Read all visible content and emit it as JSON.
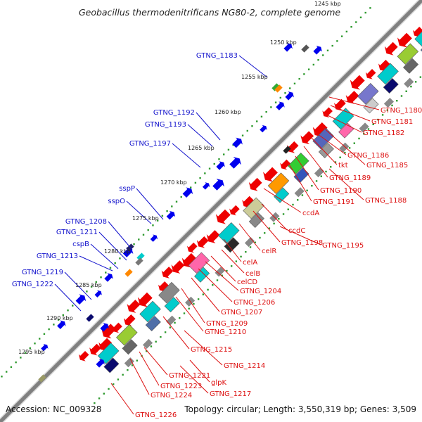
{
  "title": "Geobacillus thermodenitrificans NG80-2, complete genome",
  "footer": {
    "accession": "Accession: NC_009328",
    "summary": "Topology: circular; Length: 3,550,319 bp; Genes: 3,509"
  },
  "colors": {
    "forward_label": "#1111cc",
    "reverse_label": "#dd1111",
    "backbone": "#7f7f7f",
    "ticks": "#2e9a2e"
  },
  "scale_labels": [
    "1245 kbp",
    "1250 kbp",
    "1255 kbp",
    "1260 kbp",
    "1265 kbp",
    "1270 kbp",
    "1275 kbp",
    "1280 kbp",
    "1285 kbp",
    "1290 kbp",
    "1295 kbp"
  ],
  "forward_genes": [
    "GTNG_1183",
    "GTNG_1192",
    "GTNG_1193",
    "GTNG_1197",
    "sspP",
    "sspO",
    "GTNG_1208",
    "GTNG_1211",
    "cspB",
    "GTNG_1213",
    "GTNG_1219",
    "GTNG_1222"
  ],
  "reverse_genes": [
    "GTNG_1180",
    "GTNG_1181",
    "GTNG_1182",
    "GTNG_1186",
    "tkt",
    "GTNG_1185",
    "GTNG_1189",
    "GTNG_1190",
    "GTNG_1188",
    "GTNG_1191",
    "ccdA",
    "ccdC",
    "GTNG_1198",
    "GTNG_1195",
    "celR",
    "celA",
    "celB",
    "celCD",
    "GTNG_1204",
    "GTNG_1206",
    "GTNG_1207",
    "GTNG_1209",
    "GTNG_1210",
    "GTNG_1215",
    "GTNG_1214",
    "GTNG_1221",
    "glpK",
    "GTNG_1223",
    "GTNG_1224",
    "GTNG_1217",
    "GTNG_1226"
  ]
}
